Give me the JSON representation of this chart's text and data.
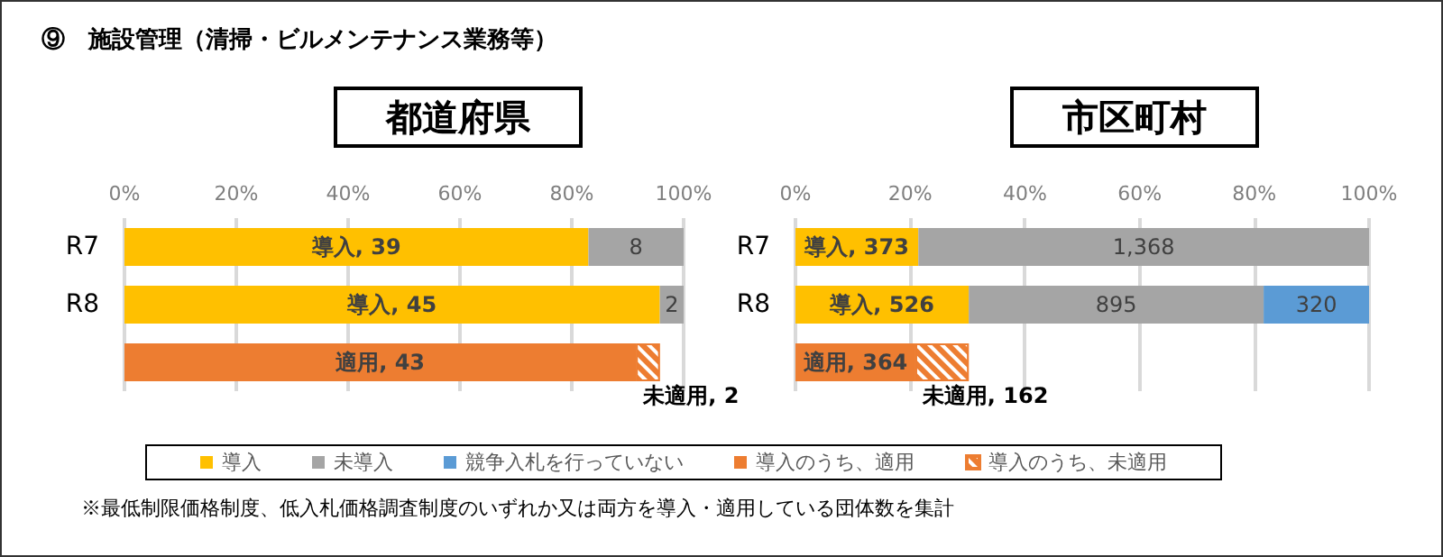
{
  "chart_data": [
    {
      "type": "bar",
      "orientation": "horizontal",
      "stacked": true,
      "title": "都道府県",
      "categories": [
        "R7",
        "R8",
        null
      ],
      "xlim": [
        0,
        47
      ],
      "x2lim": [
        0,
        100
      ],
      "x2ticks": [
        {
          "value": 0,
          "label": "0%"
        },
        {
          "value": 20,
          "label": "20%"
        },
        {
          "value": 40,
          "label": "40%"
        },
        {
          "value": 60,
          "label": "60%"
        },
        {
          "value": 80,
          "label": "80%"
        },
        {
          "value": 100,
          "label": "100%"
        }
      ],
      "grid": "x",
      "series": [
        {
          "color": "#ffc000",
          "values": [
            39,
            45,
            null
          ],
          "value_labels": [
            "導入, 39",
            "導入, 45",
            null
          ]
        },
        {
          "color": "#a5a5a5",
          "values": [
            8,
            2,
            null
          ],
          "value_labels": [
            "8",
            "2",
            null
          ]
        },
        {
          "color": "#ed7d31",
          "values": [
            null,
            null,
            43
          ],
          "value_labels": [
            null,
            null,
            "適用, 43"
          ]
        },
        {
          "color": "#ed7d31",
          "values": [
            null,
            null,
            2
          ],
          "value_labels": [
            null,
            null,
            "未適用, 2"
          ]
        }
      ]
    },
    {
      "type": "bar",
      "orientation": "horizontal",
      "stacked": true,
      "title": "市区町村",
      "annotations": [
        "⑨　施設管理（清掃・ビルメンテナンス業務等）",
        "※最低制限価格制度、低入札価格調査制度のいずれか又は両方を導入・適用している団体数を集計"
      ],
      "categories": [
        "R7",
        "R8",
        null
      ],
      "xlim": [
        0,
        1741
      ],
      "x2lim": [
        0,
        100
      ],
      "x2ticks": [
        {
          "value": 0,
          "label": "0%"
        },
        {
          "value": 20,
          "label": "20%"
        },
        {
          "value": 40,
          "label": "40%"
        },
        {
          "value": 60,
          "label": "60%"
        },
        {
          "value": 80,
          "label": "80%"
        },
        {
          "value": 100,
          "label": "100%"
        }
      ],
      "grid": "x",
      "legend": "bottom",
      "series": [
        {
          "name": "導入",
          "color": "#ffc000",
          "values": [
            373,
            526,
            null
          ],
          "value_labels": [
            "導入, 373",
            "導入, 526",
            null
          ]
        },
        {
          "name": "未導入",
          "color": "#a5a5a5",
          "values": [
            1368,
            895,
            null
          ],
          "value_labels": [
            "1,368",
            "895",
            null
          ]
        },
        {
          "name": "競争入札を行っていない",
          "color": "#5b9bd5",
          "values": [
            null,
            320,
            null
          ],
          "value_labels": [
            null,
            "320",
            null
          ]
        },
        {
          "name": "導入のうち、適用",
          "color": "#ed7d31",
          "values": [
            null,
            null,
            364
          ],
          "value_labels": [
            null,
            null,
            "適用, 364"
          ]
        },
        {
          "name": "導入のうち、未適用",
          "color": "#ed7d31",
          "values": [
            null,
            null,
            162
          ],
          "value_labels": [
            null,
            null,
            "未適用, 162"
          ]
        }
      ]
    }
  ]
}
